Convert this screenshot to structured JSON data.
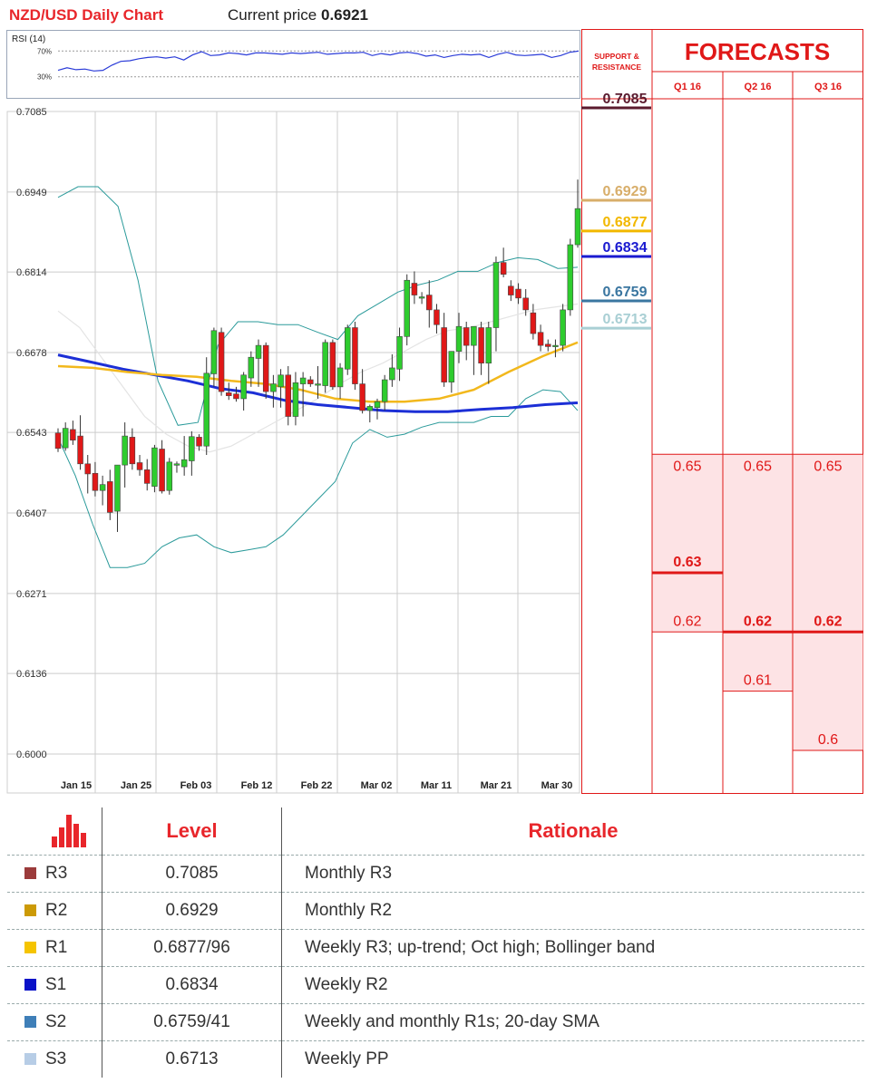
{
  "title": "NZD/USD Daily Chart",
  "current_label": "Current price",
  "current_price": "0.6921",
  "rsi": {
    "title": "RSI (14)",
    "level_high": "70%",
    "level_low": "30%",
    "values": [
      40,
      44,
      41,
      42,
      39,
      40,
      48,
      54,
      55,
      58,
      60,
      61,
      59,
      61,
      56,
      64,
      69,
      63,
      64,
      67,
      66,
      64,
      67,
      67,
      66,
      65,
      67,
      66,
      67,
      68,
      65,
      66,
      67,
      67,
      68,
      63,
      66,
      64,
      67,
      68,
      66,
      62,
      64,
      60,
      63,
      65,
      64,
      65,
      60,
      65,
      68,
      64,
      63,
      64,
      65,
      60,
      63,
      68,
      70
    ]
  },
  "colors": {
    "bull": "#2ecc2e",
    "bear": "#e01818",
    "sma200": "#1c2fd6",
    "sma50": "#f2b81c",
    "boll": "#2a9a9a",
    "forecast_red": "#e01818",
    "forecast_fill": "#fde3e5"
  },
  "chart_data": [
    {
      "type": "candlestick",
      "title": "NZD/USD Daily Chart",
      "x_ticks": [
        "Jan 15",
        "Jan 25",
        "Feb 03",
        "Feb 12",
        "Feb 22",
        "Mar 02",
        "Mar 11",
        "Mar 21",
        "Mar 30"
      ],
      "y_ticks": [
        "0.7085",
        "0.6949",
        "0.6814",
        "0.6678",
        "0.6543",
        "0.6407",
        "0.6271",
        "0.6136",
        "0.6000"
      ],
      "ylim": [
        0.6,
        0.7085
      ],
      "grid": true,
      "candles": [
        [
          0.6542,
          0.655,
          0.651,
          0.6516
        ],
        [
          0.6517,
          0.656,
          0.6512,
          0.655
        ],
        [
          0.6548,
          0.6563,
          0.6522,
          0.653
        ],
        [
          0.6537,
          0.6572,
          0.648,
          0.649
        ],
        [
          0.649,
          0.6505,
          0.644,
          0.6473
        ],
        [
          0.6474,
          0.6493,
          0.6435,
          0.6445
        ],
        [
          0.6445,
          0.647,
          0.642,
          0.6455
        ],
        [
          0.646,
          0.648,
          0.6395,
          0.6408
        ],
        [
          0.641,
          0.6488,
          0.6375,
          0.6488
        ],
        [
          0.6488,
          0.656,
          0.645,
          0.6537
        ],
        [
          0.6535,
          0.655,
          0.648,
          0.649
        ],
        [
          0.6492,
          0.6505,
          0.647,
          0.648
        ],
        [
          0.648,
          0.6498,
          0.6445,
          0.6457
        ],
        [
          0.6452,
          0.6522,
          0.6442,
          0.6517
        ],
        [
          0.6515,
          0.653,
          0.644,
          0.6444
        ],
        [
          0.6445,
          0.65,
          0.6438,
          0.6493
        ],
        [
          0.649,
          0.6494,
          0.6475,
          0.649
        ],
        [
          0.6485,
          0.6537,
          0.647,
          0.6497
        ],
        [
          0.6495,
          0.6545,
          0.647,
          0.6536
        ],
        [
          0.6535,
          0.654,
          0.6512,
          0.652
        ],
        [
          0.652,
          0.667,
          0.6505,
          0.6643
        ],
        [
          0.6642,
          0.672,
          0.662,
          0.6715
        ],
        [
          0.6712,
          0.672,
          0.6605,
          0.6612
        ],
        [
          0.661,
          0.6627,
          0.6598,
          0.6605
        ],
        [
          0.6608,
          0.662,
          0.6595,
          0.66
        ],
        [
          0.66,
          0.6645,
          0.658,
          0.664
        ],
        [
          0.6635,
          0.668,
          0.662,
          0.667
        ],
        [
          0.6668,
          0.67,
          0.662,
          0.669
        ],
        [
          0.669,
          0.6695,
          0.66,
          0.6612
        ],
        [
          0.6612,
          0.664,
          0.6585,
          0.6625
        ],
        [
          0.662,
          0.665,
          0.6585,
          0.664
        ],
        [
          0.664,
          0.6655,
          0.6555,
          0.657
        ],
        [
          0.657,
          0.6645,
          0.6555,
          0.6627
        ],
        [
          0.6625,
          0.6645,
          0.657,
          0.6635
        ],
        [
          0.6632,
          0.6638,
          0.662,
          0.6625
        ],
        [
          0.6625,
          0.6655,
          0.66,
          0.6625
        ],
        [
          0.6622,
          0.67,
          0.661,
          0.6695
        ],
        [
          0.6695,
          0.67,
          0.6615,
          0.662
        ],
        [
          0.662,
          0.666,
          0.66,
          0.6652
        ],
        [
          0.665,
          0.6725,
          0.664,
          0.672
        ],
        [
          0.672,
          0.673,
          0.6615,
          0.6625
        ],
        [
          0.6625,
          0.665,
          0.6575,
          0.658
        ],
        [
          0.658,
          0.659,
          0.656,
          0.6587
        ],
        [
          0.6585,
          0.66,
          0.6565,
          0.6595
        ],
        [
          0.6595,
          0.664,
          0.658,
          0.6632
        ],
        [
          0.6632,
          0.6675,
          0.662,
          0.6652
        ],
        [
          0.665,
          0.672,
          0.663,
          0.6705
        ],
        [
          0.6705,
          0.681,
          0.669,
          0.68
        ],
        [
          0.6795,
          0.6815,
          0.676,
          0.6775
        ],
        [
          0.677,
          0.678,
          0.676,
          0.6772
        ],
        [
          0.6775,
          0.68,
          0.672,
          0.675
        ],
        [
          0.675,
          0.676,
          0.671,
          0.6725
        ],
        [
          0.672,
          0.6745,
          0.662,
          0.6628
        ],
        [
          0.6628,
          0.668,
          0.661,
          0.668
        ],
        [
          0.668,
          0.6745,
          0.666,
          0.6722
        ],
        [
          0.672,
          0.673,
          0.6665,
          0.669
        ],
        [
          0.669,
          0.672,
          0.664,
          0.6722
        ],
        [
          0.672,
          0.673,
          0.664,
          0.666
        ],
        [
          0.666,
          0.673,
          0.6625,
          0.672
        ],
        [
          0.672,
          0.684,
          0.668,
          0.683
        ],
        [
          0.683,
          0.6855,
          0.6805,
          0.681
        ],
        [
          0.679,
          0.68,
          0.6765,
          0.6775
        ],
        [
          0.6785,
          0.6795,
          0.676,
          0.677
        ],
        [
          0.677,
          0.6785,
          0.674,
          0.675
        ],
        [
          0.6745,
          0.676,
          0.67,
          0.671
        ],
        [
          0.6712,
          0.6725,
          0.668,
          0.669
        ],
        [
          0.6692,
          0.67,
          0.668,
          0.6688
        ],
        [
          0.669,
          0.67,
          0.667,
          0.669
        ],
        [
          0.669,
          0.676,
          0.668,
          0.675
        ],
        [
          0.675,
          0.687,
          0.674,
          0.686
        ],
        [
          0.686,
          0.697,
          0.6855,
          0.6921
        ]
      ],
      "sma200": [
        0.6674,
        0.6662,
        0.665,
        0.664,
        0.663,
        0.6617,
        0.661,
        0.6597,
        0.659,
        0.6585,
        0.658,
        0.6578,
        0.6578,
        0.6582,
        0.6585,
        0.659,
        0.6593
      ],
      "sma50": [
        0.6655,
        0.6652,
        0.6645,
        0.664,
        0.6637,
        0.663,
        0.6625,
        0.6615,
        0.66,
        0.6595,
        0.6595,
        0.66,
        0.6615,
        0.6645,
        0.6672,
        0.6695
      ],
      "bollinger_upper": [
        0.694,
        0.6958,
        0.6958,
        0.6925,
        0.68,
        0.663,
        0.6555,
        0.656,
        0.669,
        0.673,
        0.673,
        0.6725,
        0.6725,
        0.6712,
        0.67,
        0.674,
        0.676,
        0.678,
        0.6792,
        0.68,
        0.6815,
        0.6815,
        0.683,
        0.6838,
        0.6835,
        0.682,
        0.6822
      ],
      "bollinger_lower": [
        0.6534,
        0.647,
        0.6388,
        0.6315,
        0.6315,
        0.6322,
        0.635,
        0.6365,
        0.637,
        0.635,
        0.634,
        0.6345,
        0.635,
        0.637,
        0.64,
        0.643,
        0.646,
        0.6525,
        0.6548,
        0.6535,
        0.654,
        0.6552,
        0.656,
        0.656,
        0.656,
        0.657,
        0.657,
        0.66,
        0.6615,
        0.6612,
        0.658
      ],
      "bollinger_mid": [
        0.6748,
        0.672,
        0.667,
        0.662,
        0.657,
        0.654,
        0.652,
        0.651,
        0.652,
        0.654,
        0.656,
        0.658,
        0.66,
        0.6625,
        0.6645,
        0.666,
        0.668,
        0.67,
        0.6715,
        0.672,
        0.673,
        0.674,
        0.675,
        0.6755,
        0.676
      ]
    },
    {
      "type": "table",
      "title": "FORECASTS",
      "header_left": "SUPPORT & RESISTANCE",
      "columns": [
        "Q1 16",
        "Q2 16",
        "Q3 16"
      ],
      "ylim": [
        0.6,
        0.7085
      ],
      "levels": [
        {
          "value": 0.7085,
          "label": "0.7085",
          "color": "#5a1a2e"
        },
        {
          "value": 0.6929,
          "label": "0.6929",
          "color": "#d8ae6a"
        },
        {
          "value": 0.6877,
          "label": "0.6877",
          "color": "#f2b800"
        },
        {
          "value": 0.6834,
          "label": "0.6834",
          "color": "#1a1ad0"
        },
        {
          "value": 0.6759,
          "label": "0.6759",
          "color": "#3a76a0"
        },
        {
          "value": 0.6713,
          "label": "0.6713",
          "color": "#a9cfd4"
        }
      ],
      "forecasts": [
        {
          "column": "Q1 16",
          "max": 0.65,
          "min": 0.62,
          "points": [
            {
              "value": 0.65,
              "label": "0.65",
              "bold": false
            },
            {
              "value": 0.63,
              "label": "0.63",
              "bold": true
            },
            {
              "value": 0.62,
              "label": "0.62",
              "bold": false
            }
          ]
        },
        {
          "column": "Q2 16",
          "max": 0.65,
          "min": 0.61,
          "points": [
            {
              "value": 0.65,
              "label": "0.65",
              "bold": false
            },
            {
              "value": 0.62,
              "label": "0.62",
              "bold": true
            },
            {
              "value": 0.61,
              "label": "0.61",
              "bold": false
            }
          ]
        },
        {
          "column": "Q3 16",
          "max": 0.65,
          "min": 0.6,
          "points": [
            {
              "value": 0.65,
              "label": "0.65",
              "bold": false
            },
            {
              "value": 0.62,
              "label": "0.62",
              "bold": true
            },
            {
              "value": 0.6,
              "label": "0.6",
              "bold": false
            }
          ]
        }
      ]
    }
  ],
  "table": {
    "headers": {
      "level": "Level",
      "rationale": "Rationale"
    },
    "rows": [
      {
        "name": "R3",
        "color": "#9b3b3b",
        "level": "0.7085",
        "rationale": "Monthly R3"
      },
      {
        "name": "R2",
        "color": "#cc9a06",
        "level": "0.6929",
        "rationale": "Monthly R2"
      },
      {
        "name": "R1",
        "color": "#f5c400",
        "level": "0.6877/96",
        "rationale": "Weekly R3; up-trend; Oct high; Bollinger band"
      },
      {
        "name": "S1",
        "color": "#0a12c8",
        "level": "0.6834",
        "rationale": "Weekly R2"
      },
      {
        "name": "S2",
        "color": "#3f7fb8",
        "level": "0.6759/41",
        "rationale": "Weekly and monthly R1s; 20-day SMA"
      },
      {
        "name": "S3",
        "color": "#b7cde6",
        "level": "0.6713",
        "rationale": "Weekly PP"
      }
    ]
  }
}
